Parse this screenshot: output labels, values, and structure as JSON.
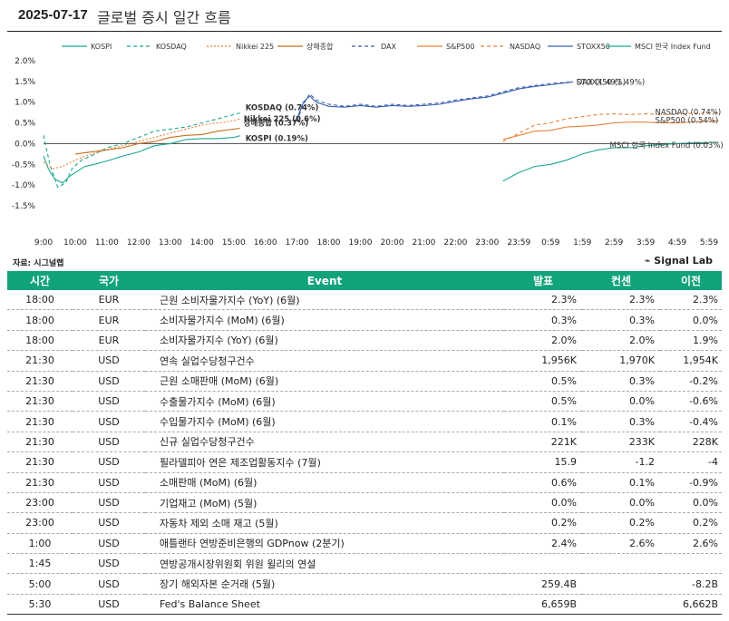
{
  "header": {
    "date": "2025-07-17",
    "title": "글로벌 증시 일간 흐름"
  },
  "source": "자료: 시그널랩",
  "brand": "Signal Lab",
  "chart_data": {
    "type": "line",
    "ylim": [
      -1.5,
      2.0
    ],
    "yticks": [
      "2.0%",
      "1.5%",
      "1.0%",
      "0.5%",
      "0.0%",
      "-0.5%",
      "-1.0%",
      "-1.5%"
    ],
    "ytick_values": [
      2.0,
      1.5,
      1.0,
      0.5,
      0.0,
      -0.5,
      -1.0,
      -1.5
    ],
    "x_ticks": [
      "9:00",
      "10:00",
      "11:00",
      "12:00",
      "13:00",
      "14:00",
      "15:00",
      "16:00",
      "17:00",
      "18:00",
      "19:00",
      "20:00",
      "21:00",
      "22:00",
      "23:00",
      "23:59",
      "0:59",
      "1:59",
      "2:59",
      "3:59",
      "4:59",
      "5:59"
    ],
    "grid": false,
    "legend_position": "top",
    "series": [
      {
        "name": "KOSPI",
        "color": "#1aa88e",
        "dash": "",
        "label": "KOSPI (0.19%)",
        "points": [
          [
            0,
            -0.3
          ],
          [
            0.15,
            -0.6
          ],
          [
            0.35,
            -0.85
          ],
          [
            0.6,
            -0.95
          ],
          [
            0.8,
            -0.8
          ],
          [
            1.0,
            -0.7
          ],
          [
            1.3,
            -0.55
          ],
          [
            1.6,
            -0.5
          ],
          [
            2.0,
            -0.42
          ],
          [
            2.5,
            -0.3
          ],
          [
            3.0,
            -0.2
          ],
          [
            3.5,
            -0.05
          ],
          [
            4.0,
            0.0
          ],
          [
            4.5,
            0.1
          ],
          [
            5.0,
            0.12
          ],
          [
            5.5,
            0.12
          ],
          [
            6.0,
            0.15
          ],
          [
            6.2,
            0.19
          ]
        ]
      },
      {
        "name": "KOSDAQ",
        "color": "#1aa88e",
        "dash": "4,3",
        "label": "KOSDAQ (0.74%)",
        "points": [
          [
            0,
            0.2
          ],
          [
            0.2,
            -0.5
          ],
          [
            0.45,
            -1.05
          ],
          [
            0.7,
            -0.95
          ],
          [
            0.9,
            -0.6
          ],
          [
            1.2,
            -0.4
          ],
          [
            1.5,
            -0.3
          ],
          [
            2.0,
            -0.1
          ],
          [
            2.5,
            0.0
          ],
          [
            3.0,
            0.15
          ],
          [
            3.5,
            0.3
          ],
          [
            4.0,
            0.35
          ],
          [
            4.5,
            0.4
          ],
          [
            5.0,
            0.5
          ],
          [
            5.5,
            0.6
          ],
          [
            6.0,
            0.7
          ],
          [
            6.2,
            0.74
          ]
        ]
      },
      {
        "name": "Nikkei 225",
        "color": "#e8843c",
        "dash": "2,2",
        "label": "Nikkei 225 (0.6%)",
        "points": [
          [
            0,
            -0.45
          ],
          [
            0.3,
            -0.6
          ],
          [
            0.6,
            -0.55
          ],
          [
            1.0,
            -0.4
          ],
          [
            1.5,
            -0.25
          ],
          [
            2.0,
            -0.15
          ],
          [
            2.5,
            -0.05
          ],
          [
            3.0,
            0.05
          ],
          [
            3.5,
            0.15
          ],
          [
            4.0,
            0.25
          ],
          [
            4.5,
            0.35
          ],
          [
            5.0,
            0.45
          ],
          [
            5.5,
            0.5
          ],
          [
            6.0,
            0.55
          ],
          [
            6.2,
            0.6
          ]
        ]
      },
      {
        "name": "상해종합",
        "color": "#c8701a",
        "dash": "",
        "label": "상해종합 (0.37%)",
        "points": [
          [
            1.0,
            -0.25
          ],
          [
            1.5,
            -0.2
          ],
          [
            2.0,
            -0.15
          ],
          [
            2.5,
            -0.1
          ],
          [
            3.0,
            0.0
          ],
          [
            3.5,
            0.05
          ],
          [
            4.0,
            0.15
          ],
          [
            4.5,
            0.2
          ],
          [
            5.0,
            0.22
          ],
          [
            5.5,
            0.3
          ],
          [
            6.0,
            0.35
          ],
          [
            6.2,
            0.37
          ]
        ]
      },
      {
        "name": "DAX",
        "color": "#3a5fb0",
        "dash": "4,3",
        "label": "DAX (1.49%)",
        "points": [
          [
            8.0,
            0.55
          ],
          [
            8.2,
            0.95
          ],
          [
            8.4,
            1.2
          ],
          [
            8.6,
            1.05
          ],
          [
            9.0,
            0.95
          ],
          [
            9.5,
            0.9
          ],
          [
            10.0,
            0.95
          ],
          [
            10.5,
            0.9
          ],
          [
            11.0,
            0.95
          ],
          [
            11.5,
            0.92
          ],
          [
            12.0,
            0.95
          ],
          [
            12.5,
            0.98
          ],
          [
            13.0,
            1.05
          ],
          [
            13.5,
            1.1
          ],
          [
            14.0,
            1.15
          ],
          [
            14.5,
            1.25
          ],
          [
            15.0,
            1.35
          ],
          [
            15.5,
            1.4
          ],
          [
            16.0,
            1.45
          ],
          [
            16.7,
            1.49
          ]
        ]
      },
      {
        "name": "S&P500",
        "color": "#e8843c",
        "dash": "",
        "label": "S&P500 (0.54%)",
        "points": [
          [
            14.5,
            0.1
          ],
          [
            15.0,
            0.2
          ],
          [
            15.5,
            0.3
          ],
          [
            16.0,
            0.32
          ],
          [
            16.5,
            0.4
          ],
          [
            17.0,
            0.42
          ],
          [
            17.5,
            0.45
          ],
          [
            18.0,
            0.5
          ],
          [
            18.5,
            0.52
          ],
          [
            19.0,
            0.52
          ],
          [
            19.5,
            0.5
          ],
          [
            20.0,
            0.5
          ],
          [
            20.5,
            0.53
          ],
          [
            21.0,
            0.54
          ],
          [
            21.3,
            0.54
          ]
        ]
      },
      {
        "name": "NASDAQ",
        "color": "#e8843c",
        "dash": "4,3",
        "label": "NASDAQ (0.74%)",
        "points": [
          [
            14.5,
            0.05
          ],
          [
            15.0,
            0.25
          ],
          [
            15.5,
            0.45
          ],
          [
            16.0,
            0.5
          ],
          [
            16.5,
            0.6
          ],
          [
            17.0,
            0.65
          ],
          [
            17.5,
            0.7
          ],
          [
            18.0,
            0.72
          ],
          [
            18.5,
            0.7
          ],
          [
            19.0,
            0.72
          ],
          [
            19.5,
            0.7
          ],
          [
            20.0,
            0.72
          ],
          [
            20.5,
            0.73
          ],
          [
            21.0,
            0.74
          ],
          [
            21.3,
            0.74
          ]
        ]
      },
      {
        "name": "STOXX50",
        "color": "#3a5fb0",
        "dash": "",
        "label": "STOXX50 (1.49%)",
        "points": [
          [
            8.0,
            0.6
          ],
          [
            8.2,
            1.0
          ],
          [
            8.4,
            1.15
          ],
          [
            8.6,
            1.0
          ],
          [
            9.0,
            0.9
          ],
          [
            9.5,
            0.88
          ],
          [
            10.0,
            0.92
          ],
          [
            10.5,
            0.88
          ],
          [
            11.0,
            0.92
          ],
          [
            11.5,
            0.9
          ],
          [
            12.0,
            0.92
          ],
          [
            12.5,
            0.95
          ],
          [
            13.0,
            1.02
          ],
          [
            13.5,
            1.08
          ],
          [
            14.0,
            1.12
          ],
          [
            14.5,
            1.22
          ],
          [
            15.0,
            1.32
          ],
          [
            15.5,
            1.38
          ],
          [
            16.0,
            1.42
          ],
          [
            16.7,
            1.49
          ]
        ]
      },
      {
        "name": "MSCI 한국 Index Fund",
        "color": "#1aa88e",
        "dash": "",
        "label": "MSCI 한국 Index Fund (0.03%)",
        "points": [
          [
            14.5,
            -0.9
          ],
          [
            15.0,
            -0.7
          ],
          [
            15.5,
            -0.55
          ],
          [
            16.0,
            -0.5
          ],
          [
            16.5,
            -0.4
          ],
          [
            17.0,
            -0.25
          ],
          [
            17.5,
            -0.15
          ],
          [
            18.0,
            -0.1
          ],
          [
            18.5,
            -0.1
          ],
          [
            19.0,
            -0.05
          ],
          [
            19.5,
            -0.02
          ],
          [
            20.0,
            0.0
          ],
          [
            20.5,
            0.02
          ],
          [
            21.0,
            0.03
          ],
          [
            21.3,
            0.03
          ]
        ]
      }
    ]
  },
  "table": {
    "headers": [
      "시간",
      "국가",
      "Event",
      "발표",
      "컨센",
      "이전"
    ],
    "rows": [
      [
        "18:00",
        "EUR",
        "근원 소비자물가지수 (YoY) (6월)",
        "2.3%",
        "2.3%",
        "2.3%"
      ],
      [
        "18:00",
        "EUR",
        "소비자물가지수 (MoM) (6월)",
        "0.3%",
        "0.3%",
        "0.0%"
      ],
      [
        "18:00",
        "EUR",
        "소비자물가지수 (YoY) (6월)",
        "2.0%",
        "2.0%",
        "1.9%"
      ],
      [
        "21:30",
        "USD",
        "연속 실업수당청구건수",
        "1,956K",
        "1,970K",
        "1,954K"
      ],
      [
        "21:30",
        "USD",
        "근원 소매판매 (MoM) (6월)",
        "0.5%",
        "0.3%",
        "-0.2%"
      ],
      [
        "21:30",
        "USD",
        "수출물가지수 (MoM) (6월)",
        "0.5%",
        "0.0%",
        "-0.6%"
      ],
      [
        "21:30",
        "USD",
        "수입물가지수 (MoM) (6월)",
        "0.1%",
        "0.3%",
        "-0.4%"
      ],
      [
        "21:30",
        "USD",
        "신규 실업수당청구건수",
        "221K",
        "233K",
        "228K"
      ],
      [
        "21:30",
        "USD",
        "필라델피아 연은 제조업활동지수 (7월)",
        "15.9",
        "-1.2",
        "-4"
      ],
      [
        "21:30",
        "USD",
        "소매판매 (MoM) (6월)",
        "0.6%",
        "0.1%",
        "-0.9%"
      ],
      [
        "23:00",
        "USD",
        "기업재고 (MoM) (5월)",
        "0.0%",
        "0.0%",
        "0.0%"
      ],
      [
        "23:00",
        "USD",
        "자동차 제외 소매 재고 (5월)",
        "0.2%",
        "0.2%",
        "0.2%"
      ],
      [
        "1:00",
        "USD",
        "애틀랜타 연방준비은행의 GDPnow (2분기)",
        "2.4%",
        "2.6%",
        "2.6%"
      ],
      [
        "1:45",
        "USD",
        "연방공개시장위원회 위원 윌리의 연설",
        "",
        "",
        ""
      ],
      [
        "5:00",
        "USD",
        "장기 해외자본 순거래 (5월)",
        "259.4B",
        "",
        "-8.2B"
      ],
      [
        "5:30",
        "USD",
        "Fed's Balance Sheet",
        "6,659B",
        "",
        "6,662B"
      ]
    ]
  }
}
